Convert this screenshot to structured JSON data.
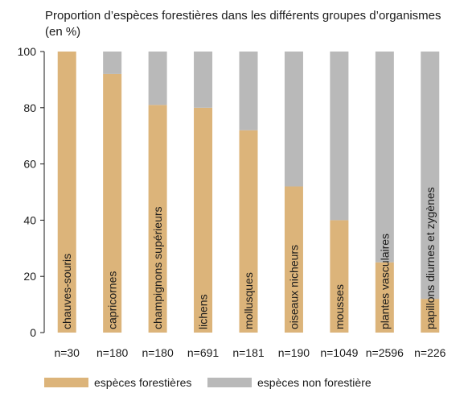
{
  "chart_data": {
    "type": "bar",
    "stacked": true,
    "title": "Proportion d’espèces forestières dans les différents groupes d’organismes",
    "subtitle": "(en %)",
    "categories": [
      "chauves-souris",
      "capricornes",
      "champignons supérieurs",
      "lichens",
      "mollusques",
      "oiseaux nicheurs",
      "mousses",
      "plantes vasculaires",
      "papillons diurnes et zygènes"
    ],
    "sample_sizes": [
      "n=30",
      "n=180",
      "n=180",
      "n=691",
      "n=181",
      "n=190",
      "n=1049",
      "n=2596",
      "n=226"
    ],
    "series": [
      {
        "name": "espèces forestières",
        "color": "#dcb47a",
        "values": [
          100,
          92,
          81,
          80,
          72,
          52,
          40,
          25,
          12
        ]
      },
      {
        "name": "espèces non forestière",
        "color": "#b9b9b9",
        "values": [
          0,
          8,
          19,
          20,
          28,
          48,
          60,
          75,
          88
        ]
      }
    ],
    "ylim": [
      0,
      100
    ],
    "yticks": [
      0,
      20,
      40,
      60,
      80,
      100
    ],
    "legend_position": "bottom",
    "grid": false
  }
}
